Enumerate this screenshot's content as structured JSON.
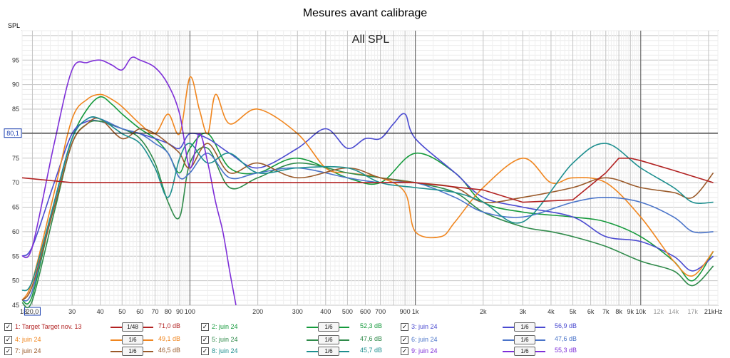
{
  "window": {
    "title": "Mesures avant calibrage"
  },
  "chart_data": {
    "type": "line",
    "title": "Mesures avant calibrage",
    "overlay_label": "All SPL",
    "ylabel": "SPL",
    "xlabel": "",
    "x_scale": "log",
    "xlim": [
      18,
      22000
    ],
    "ylim": [
      45,
      101
    ],
    "y_ticks": [
      45,
      50,
      55,
      60,
      65,
      70,
      75,
      80,
      85,
      90,
      95
    ],
    "x_ticks": [
      "18",
      "20,0",
      "30",
      "40",
      "50",
      "60",
      "70",
      "80",
      "90",
      "100",
      "200",
      "300",
      "400",
      "500",
      "600",
      "700",
      "900",
      "1k",
      "2k",
      "3k",
      "4k",
      "5k",
      "6k",
      "7k",
      "8k",
      "9k",
      "10k",
      "12k",
      "14k",
      "17k",
      "21kHz"
    ],
    "x_tick_values": [
      18,
      20,
      30,
      40,
      50,
      60,
      70,
      80,
      90,
      100,
      200,
      300,
      400,
      500,
      600,
      700,
      900,
      1000,
      2000,
      3000,
      4000,
      5000,
      6000,
      7000,
      8000,
      9000,
      10000,
      12000,
      14000,
      17000,
      21000
    ],
    "reference_line": {
      "value": 80.1,
      "label": "80,1"
    },
    "grid": true,
    "series": [
      {
        "name": "1: Target Target nov. 13",
        "color": "#b22222",
        "x": [
          18,
          30,
          200,
          1000,
          2000,
          3000,
          5000,
          7000,
          8000,
          9000,
          10000,
          14000,
          21000
        ],
        "y": [
          71,
          70,
          70,
          70,
          68.5,
          66,
          66.5,
          72,
          75,
          75,
          74.5,
          72.5,
          70
        ]
      },
      {
        "name": "2: juin 24",
        "color": "#159a3c",
        "x": [
          18,
          20,
          25,
          30,
          35,
          40,
          45,
          50,
          60,
          70,
          80,
          90,
          100,
          120,
          150,
          200,
          300,
          500,
          700,
          1000,
          1500,
          2000,
          3000,
          5000,
          7000,
          10000,
          14000,
          17000,
          21000
        ],
        "y": [
          46,
          47,
          66,
          79,
          85,
          87.5,
          86,
          84,
          81,
          79,
          76,
          72,
          77,
          80,
          73,
          72,
          75,
          71,
          70,
          76,
          72,
          66,
          64,
          63,
          62,
          59,
          54,
          50,
          56
        ]
      },
      {
        "name": "3: juin 24",
        "color": "#4a4ad0",
        "x": [
          18,
          20,
          25,
          30,
          35,
          40,
          50,
          60,
          70,
          80,
          90,
          100,
          120,
          150,
          200,
          300,
          400,
          500,
          600,
          700,
          800,
          900,
          1000,
          1500,
          2000,
          3000,
          5000,
          7000,
          10000,
          14000,
          17000,
          21000
        ],
        "y": [
          55,
          57,
          70,
          80,
          82.5,
          82.5,
          81,
          80,
          79,
          78,
          77,
          80,
          79,
          76,
          73,
          77,
          81,
          77,
          79,
          79,
          82,
          84,
          79,
          72,
          67,
          65,
          63,
          59,
          58,
          55,
          52,
          55
        ]
      },
      {
        "name": "4: juin 24",
        "color": "#f0861f",
        "x": [
          18,
          20,
          25,
          30,
          35,
          40,
          45,
          50,
          60,
          70,
          80,
          90,
          100,
          110,
          120,
          130,
          150,
          200,
          300,
          400,
          500,
          700,
          900,
          1000,
          1300,
          1500,
          2000,
          3000,
          4000,
          5000,
          7000,
          10000,
          14000,
          17000,
          21000
        ],
        "y": [
          46,
          50,
          68,
          83,
          87,
          88,
          87,
          85.5,
          82,
          80,
          84,
          80,
          91.5,
          85,
          80,
          88,
          82,
          85,
          80,
          73,
          72,
          71,
          68,
          60,
          59,
          62,
          69,
          75,
          70,
          71,
          70,
          63,
          54,
          51,
          56
        ]
      },
      {
        "name": "5: juin 24",
        "color": "#2f8a4a",
        "x": [
          18,
          20,
          25,
          30,
          35,
          40,
          50,
          60,
          70,
          80,
          90,
          100,
          120,
          150,
          200,
          300,
          500,
          700,
          1000,
          1500,
          2000,
          3000,
          4000,
          5000,
          7000,
          10000,
          14000,
          17000,
          21000
        ],
        "y": [
          45.5,
          46,
          64,
          78,
          82,
          82.5,
          81,
          79,
          74,
          66,
          63,
          74,
          77,
          69,
          71,
          74,
          72,
          71,
          70,
          68,
          64,
          61,
          60,
          59,
          57,
          54,
          52,
          49,
          53
        ]
      },
      {
        "name": "6: juin 24",
        "color": "#4a74c9",
        "x": [
          18,
          20,
          25,
          30,
          35,
          40,
          50,
          60,
          70,
          80,
          90,
          100,
          120,
          150,
          200,
          300,
          500,
          700,
          1000,
          1500,
          2000,
          3000,
          5000,
          7000,
          10000,
          14000,
          17000,
          21000
        ],
        "y": [
          46,
          48,
          66,
          79,
          83,
          83,
          81,
          80,
          78,
          76,
          71,
          72,
          76,
          71,
          72,
          73,
          71,
          70,
          70,
          67,
          64,
          63,
          66,
          67,
          66,
          63,
          60,
          60
        ]
      },
      {
        "name": "7: juin 24",
        "color": "#9a5a2a",
        "x": [
          18,
          20,
          25,
          30,
          35,
          40,
          50,
          60,
          70,
          80,
          90,
          100,
          120,
          150,
          200,
          300,
          500,
          700,
          1000,
          1500,
          2000,
          3000,
          5000,
          7000,
          10000,
          14000,
          17000,
          21000
        ],
        "y": [
          46,
          49,
          65,
          78,
          82,
          83,
          79,
          81,
          80,
          78,
          76,
          73,
          78,
          72,
          74,
          71,
          73,
          71,
          70,
          69,
          66,
          67,
          69,
          71,
          69,
          68,
          67,
          72
        ]
      },
      {
        "name": "8: juin 24",
        "color": "#1e8f8f",
        "x": [
          18,
          20,
          25,
          30,
          35,
          40,
          50,
          60,
          70,
          80,
          90,
          100,
          120,
          150,
          200,
          300,
          500,
          700,
          1000,
          1500,
          2000,
          3000,
          5000,
          7000,
          10000,
          14000,
          17000,
          21000
        ],
        "y": [
          48,
          50,
          66,
          79,
          83,
          83,
          80,
          78,
          73,
          67,
          75,
          78,
          74,
          76,
          72,
          73,
          73,
          70,
          69,
          68,
          66,
          62,
          74,
          78,
          73,
          69,
          66,
          66
        ]
      },
      {
        "name": "9: juin 24",
        "color": "#7e2fd8",
        "x": [
          18,
          20,
          25,
          30,
          35,
          40,
          45,
          50,
          55,
          60,
          70,
          80,
          90,
          100,
          110,
          120,
          130,
          140,
          150,
          160
        ],
        "y": [
          55,
          57,
          78,
          93,
          94.5,
          95,
          94,
          93,
          95.5,
          95,
          93.5,
          90,
          84,
          73,
          80,
          74,
          66,
          60,
          52,
          45
        ]
      }
    ]
  },
  "legend": {
    "rows": [
      [
        {
          "name": "1: Target Target nov. 13",
          "checked": true,
          "smoothing": "1/48",
          "value": "71,0 dB",
          "color": "#b22222"
        },
        {
          "name": "2: juin 24",
          "checked": true,
          "smoothing": "1/6",
          "value": "52,3 dB",
          "color": "#159a3c"
        },
        {
          "name": "3: juin 24",
          "checked": true,
          "smoothing": "1/6",
          "value": "56,9 dB",
          "color": "#4a4ad0"
        }
      ],
      [
        {
          "name": "4: juin 24",
          "checked": true,
          "smoothing": "1/6",
          "value": "49,1 dB",
          "color": "#f0861f"
        },
        {
          "name": "5: juin 24",
          "checked": true,
          "smoothing": "1/6",
          "value": "47,6 dB",
          "color": "#2f8a4a"
        },
        {
          "name": "6: juin 24",
          "checked": true,
          "smoothing": "1/6",
          "value": "47,6 dB",
          "color": "#4a74c9"
        }
      ],
      [
        {
          "name": "7: juin 24",
          "checked": true,
          "smoothing": "1/6",
          "value": "46,5 dB",
          "color": "#9a5a2a"
        },
        {
          "name": "8: juin 24",
          "checked": true,
          "smoothing": "1/6",
          "value": "45,7 dB",
          "color": "#1e8f8f"
        },
        {
          "name": "9: juin 24",
          "checked": true,
          "smoothing": "1/6",
          "value": "55,3 dB",
          "color": "#7e2fd8"
        }
      ]
    ]
  }
}
